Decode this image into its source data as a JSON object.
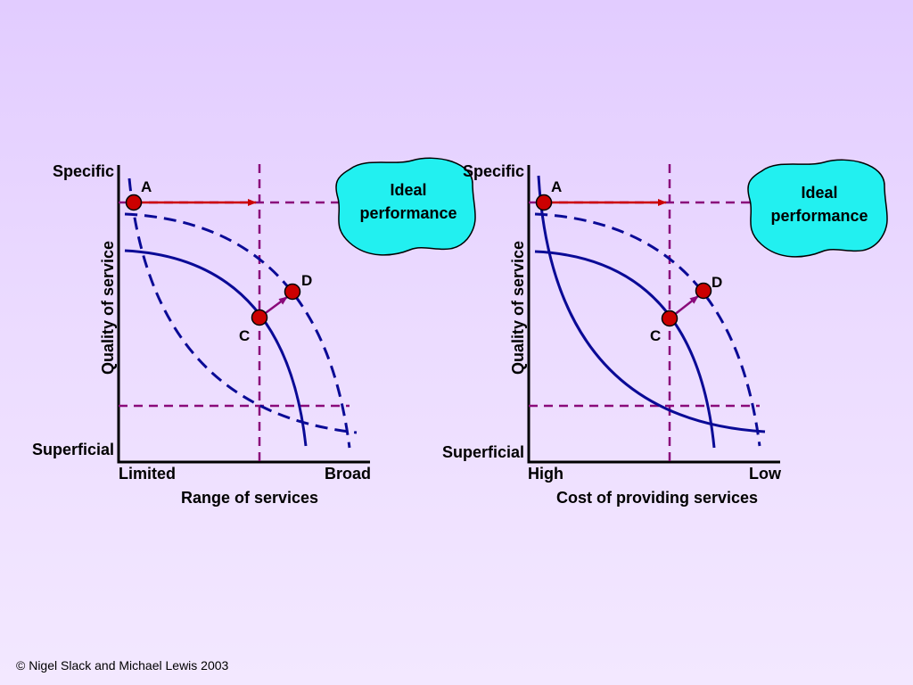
{
  "colors": {
    "axis": "#000000",
    "curve": "#0a0a96",
    "guide": "#8a0a7a",
    "arrow_a": "#cc0000",
    "arrow_c": "#8a0a7a",
    "point": "#cc0000",
    "cloud": "#22f0f0"
  },
  "left": {
    "y_top_label": "Specific",
    "y_bottom_label": "Superficial",
    "y_axis_title": "Quality of service",
    "x_left_label": "Limited",
    "x_right_label": "Broad",
    "x_axis_title": "Range of services",
    "point_a": "A",
    "point_c": "C",
    "point_d": "D",
    "cloud_line1": "Ideal",
    "cloud_line2": "performance"
  },
  "right": {
    "y_top_label": "Specific",
    "y_bottom_label": "Superficial",
    "y_axis_title": "Quality of service",
    "x_left_label": "High",
    "x_right_label": "Low",
    "x_axis_title": "Cost of providing services",
    "point_a": "A",
    "point_c": "C",
    "point_d": "D",
    "cloud_line1": "Ideal",
    "cloud_line2": "performance"
  },
  "copyright": "© Nigel Slack and Michael Lewis 2003"
}
